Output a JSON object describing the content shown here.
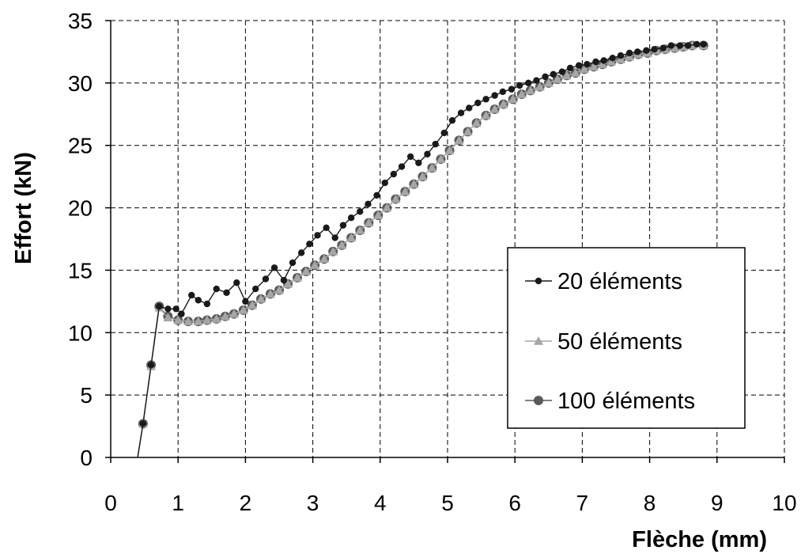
{
  "chart_data": {
    "type": "line",
    "xlabel": "Flèche (mm)",
    "ylabel": "Effort (kN)",
    "xlim": [
      0,
      10
    ],
    "ylim": [
      0,
      35
    ],
    "x_ticks": [
      "0",
      "1",
      "2",
      "3",
      "4",
      "5",
      "6",
      "7",
      "8",
      "9",
      "10"
    ],
    "y_ticks": [
      "0",
      "5",
      "10",
      "15",
      "20",
      "25",
      "30",
      "35"
    ],
    "grid": true,
    "legend_position": "right",
    "series": [
      {
        "name": "20 éléments",
        "color": "#1a1a1a",
        "marker": "circle-small",
        "x": [
          0.4,
          0.48,
          0.6,
          0.72,
          0.85,
          0.97,
          1.05,
          1.2,
          1.3,
          1.43,
          1.57,
          1.72,
          1.87,
          2.0,
          2.15,
          2.3,
          2.43,
          2.57,
          2.7,
          2.83,
          2.95,
          3.07,
          3.2,
          3.33,
          3.45,
          3.57,
          3.7,
          3.82,
          3.95,
          4.07,
          4.2,
          4.32,
          4.45,
          4.57,
          4.7,
          4.82,
          4.95,
          5.07,
          5.2,
          5.32,
          5.45,
          5.57,
          5.7,
          5.82,
          5.95,
          6.07,
          6.2,
          6.32,
          6.45,
          6.57,
          6.7,
          6.82,
          6.95,
          7.07,
          7.2,
          7.32,
          7.45,
          7.57,
          7.7,
          7.82,
          7.95,
          8.07,
          8.2,
          8.32,
          8.45,
          8.57,
          8.7,
          8.8
        ],
        "y": [
          0,
          2.7,
          7.4,
          12.1,
          11.9,
          11.9,
          11.5,
          13.0,
          12.6,
          12.3,
          13.5,
          13.2,
          14.0,
          12.5,
          13.5,
          14.3,
          15.2,
          14.2,
          15.6,
          16.4,
          17.1,
          17.8,
          18.4,
          17.6,
          18.6,
          19.2,
          19.7,
          20.3,
          21.0,
          22.0,
          22.7,
          23.3,
          24.1,
          23.6,
          24.3,
          25.1,
          26.0,
          27.0,
          27.6,
          28.0,
          28.4,
          28.7,
          29.0,
          29.3,
          29.5,
          29.8,
          30.0,
          30.2,
          30.5,
          30.7,
          30.9,
          31.2,
          31.4,
          31.5,
          31.7,
          31.8,
          32.0,
          32.2,
          32.4,
          32.5,
          32.6,
          32.7,
          32.8,
          33.0,
          33.0,
          33.0,
          33.1,
          33.1
        ]
      },
      {
        "name": "50 éléments",
        "color": "#a6a6a6",
        "marker": "triangle",
        "x": [
          0.4,
          0.48,
          0.6,
          0.72,
          0.85,
          1.0,
          1.15,
          1.3,
          1.43,
          1.57,
          1.7,
          1.83,
          1.97,
          2.1,
          2.23,
          2.37,
          2.5,
          2.63,
          2.77,
          2.9,
          3.03,
          3.17,
          3.3,
          3.43,
          3.57,
          3.7,
          3.83,
          3.97,
          4.1,
          4.23,
          4.37,
          4.5,
          4.63,
          4.77,
          4.9,
          5.03,
          5.17,
          5.3,
          5.43,
          5.57,
          5.7,
          5.83,
          5.97,
          6.1,
          6.23,
          6.37,
          6.5,
          6.63,
          6.77,
          6.9,
          7.03,
          7.17,
          7.3,
          7.43,
          7.57,
          7.7,
          7.83,
          7.97,
          8.1,
          8.23,
          8.37,
          8.5,
          8.63,
          8.8
        ],
        "y": [
          0,
          2.7,
          7.3,
          12.0,
          11.2,
          11.0,
          10.9,
          10.9,
          11.0,
          11.1,
          11.3,
          11.5,
          11.8,
          12.2,
          12.7,
          13.1,
          13.4,
          13.9,
          14.4,
          14.9,
          15.4,
          15.9,
          16.5,
          17.0,
          17.6,
          18.2,
          18.8,
          19.4,
          20.0,
          20.7,
          21.3,
          21.9,
          22.5,
          23.2,
          23.9,
          24.6,
          25.4,
          26.1,
          26.8,
          27.4,
          27.9,
          28.3,
          28.7,
          29.1,
          29.4,
          29.7,
          30.0,
          30.3,
          30.6,
          30.8,
          31.1,
          31.3,
          31.5,
          31.7,
          31.9,
          32.1,
          32.3,
          32.4,
          32.6,
          32.7,
          32.8,
          32.9,
          33.0,
          33.0
        ]
      },
      {
        "name": "100 éléments",
        "color": "#5a5a5a",
        "marker": "circle",
        "x": [
          0.4,
          0.48,
          0.6,
          0.72,
          0.85,
          1.0,
          1.15,
          1.3,
          1.43,
          1.57,
          1.7,
          1.83,
          1.97,
          2.1,
          2.23,
          2.37,
          2.5,
          2.63,
          2.77,
          2.9,
          3.03,
          3.17,
          3.3,
          3.43,
          3.57,
          3.7,
          3.83,
          3.97,
          4.1,
          4.23,
          4.37,
          4.5,
          4.63,
          4.77,
          4.9,
          5.03,
          5.17,
          5.3,
          5.43,
          5.57,
          5.7,
          5.83,
          5.97,
          6.1,
          6.23,
          6.37,
          6.5,
          6.63,
          6.77,
          6.9,
          7.03,
          7.17,
          7.3,
          7.43,
          7.57,
          7.7,
          7.83,
          7.97,
          8.1,
          8.23,
          8.37,
          8.5,
          8.63,
          8.8
        ],
        "y": [
          0,
          2.7,
          7.4,
          12.1,
          11.3,
          11.0,
          10.9,
          10.9,
          11.0,
          11.1,
          11.3,
          11.5,
          11.8,
          12.2,
          12.7,
          13.1,
          13.4,
          13.9,
          14.4,
          14.9,
          15.4,
          15.9,
          16.5,
          17.0,
          17.6,
          18.2,
          18.8,
          19.4,
          20.0,
          20.7,
          21.3,
          21.9,
          22.5,
          23.2,
          23.9,
          24.6,
          25.4,
          26.1,
          26.8,
          27.4,
          27.9,
          28.3,
          28.7,
          29.1,
          29.4,
          29.7,
          30.0,
          30.3,
          30.6,
          30.8,
          31.1,
          31.3,
          31.5,
          31.7,
          31.9,
          32.1,
          32.3,
          32.4,
          32.6,
          32.7,
          32.8,
          32.9,
          33.0,
          33.0
        ]
      }
    ]
  }
}
